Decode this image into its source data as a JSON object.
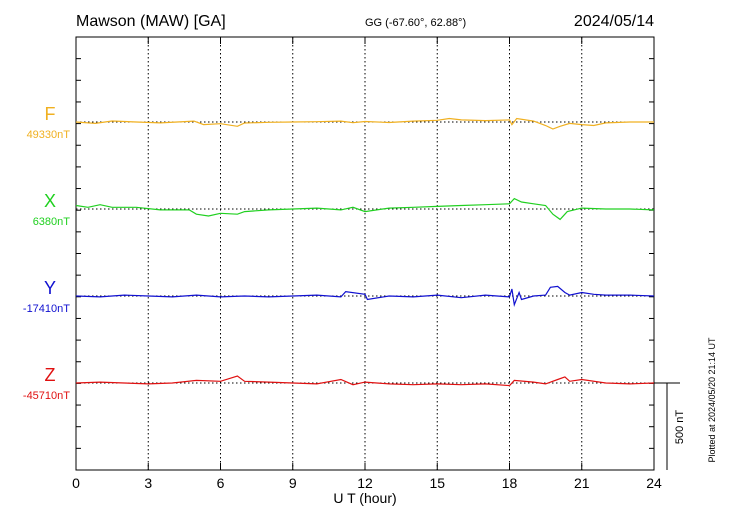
{
  "header": {
    "station": "Mawson (MAW)  [GA]",
    "coords": "GG (-67.60°,  62.88°)",
    "date": "2024/05/14"
  },
  "side_note": "Plotted at 2024/05/20 21:14 UT",
  "chart_data": {
    "type": "line",
    "xlabel": "U T (hour)",
    "xlim": [
      0,
      24
    ],
    "xticks": [
      0,
      3,
      6,
      9,
      12,
      15,
      18,
      21,
      24
    ],
    "xtick_labels": [
      "0",
      "3",
      "6",
      "9",
      "12",
      "15",
      "18",
      "21",
      "24"
    ],
    "scale_bar": {
      "label": "500 nT",
      "value_nT": 500
    },
    "series": [
      {
        "name": "F",
        "baseline": "49330nT",
        "color": "#f0b020",
        "points": [
          [
            0,
            0
          ],
          [
            0.8,
            -8
          ],
          [
            1.5,
            6
          ],
          [
            2.5,
            0
          ],
          [
            3.5,
            -5
          ],
          [
            4.9,
            5
          ],
          [
            5.3,
            -15
          ],
          [
            6,
            -10
          ],
          [
            6.7,
            -25
          ],
          [
            7,
            -6
          ],
          [
            8,
            -2
          ],
          [
            9,
            0
          ],
          [
            10,
            2
          ],
          [
            11,
            5
          ],
          [
            11.5,
            -4
          ],
          [
            12,
            3
          ],
          [
            13,
            -3
          ],
          [
            14,
            5
          ],
          [
            15,
            10
          ],
          [
            15.5,
            20
          ],
          [
            16,
            12
          ],
          [
            17,
            8
          ],
          [
            18,
            12
          ],
          [
            18.1,
            -15
          ],
          [
            18.3,
            20
          ],
          [
            19,
            5
          ],
          [
            19.5,
            -20
          ],
          [
            19.8,
            -40
          ],
          [
            20.1,
            -25
          ],
          [
            20.5,
            -8
          ],
          [
            21,
            -15
          ],
          [
            21.5,
            -20
          ],
          [
            22,
            -5
          ],
          [
            23,
            0
          ],
          [
            24,
            0
          ]
        ]
      },
      {
        "name": "X",
        "baseline": "6380nT",
        "color": "#20d020",
        "points": [
          [
            0,
            20
          ],
          [
            0.5,
            10
          ],
          [
            1,
            25
          ],
          [
            1.5,
            10
          ],
          [
            2.5,
            10
          ],
          [
            3.5,
            -5
          ],
          [
            4.7,
            -5
          ],
          [
            5,
            -30
          ],
          [
            5.5,
            -40
          ],
          [
            6,
            -25
          ],
          [
            6.7,
            -30
          ],
          [
            7,
            -15
          ],
          [
            8,
            -5
          ],
          [
            9,
            0
          ],
          [
            10,
            5
          ],
          [
            11,
            -5
          ],
          [
            11.5,
            10
          ],
          [
            12,
            -15
          ],
          [
            13,
            5
          ],
          [
            14,
            10
          ],
          [
            15,
            15
          ],
          [
            16,
            20
          ],
          [
            17,
            25
          ],
          [
            18,
            30
          ],
          [
            18.2,
            60
          ],
          [
            18.5,
            40
          ],
          [
            19,
            30
          ],
          [
            19.5,
            20
          ],
          [
            19.8,
            -30
          ],
          [
            20.1,
            -60
          ],
          [
            20.4,
            -15
          ],
          [
            21,
            5
          ],
          [
            22,
            0
          ],
          [
            23,
            0
          ],
          [
            24,
            -5
          ]
        ]
      },
      {
        "name": "Y",
        "baseline": "-17410nT",
        "color": "#1010d0",
        "points": [
          [
            0,
            0
          ],
          [
            1,
            -5
          ],
          [
            2,
            5
          ],
          [
            3,
            0
          ],
          [
            4,
            -5
          ],
          [
            5,
            5
          ],
          [
            6,
            -5
          ],
          [
            7,
            0
          ],
          [
            8,
            -5
          ],
          [
            9,
            0
          ],
          [
            10,
            5
          ],
          [
            11,
            -5
          ],
          [
            11.2,
            25
          ],
          [
            12,
            10
          ],
          [
            12.1,
            -20
          ],
          [
            13,
            0
          ],
          [
            14,
            -5
          ],
          [
            15,
            5
          ],
          [
            16,
            -10
          ],
          [
            17,
            5
          ],
          [
            18,
            -5
          ],
          [
            18.1,
            40
          ],
          [
            18.2,
            -50
          ],
          [
            18.4,
            20
          ],
          [
            18.5,
            -20
          ],
          [
            19,
            0
          ],
          [
            19.5,
            5
          ],
          [
            19.7,
            50
          ],
          [
            20,
            55
          ],
          [
            20.3,
            20
          ],
          [
            20.5,
            5
          ],
          [
            21,
            20
          ],
          [
            21.5,
            10
          ],
          [
            22,
            5
          ],
          [
            23,
            5
          ],
          [
            24,
            0
          ]
        ]
      },
      {
        "name": "Z",
        "baseline": "-45710nT",
        "color": "#e01010",
        "points": [
          [
            0,
            0
          ],
          [
            1,
            5
          ],
          [
            2,
            0
          ],
          [
            3,
            -5
          ],
          [
            4,
            0
          ],
          [
            5,
            15
          ],
          [
            6,
            10
          ],
          [
            6.7,
            40
          ],
          [
            7,
            10
          ],
          [
            8,
            5
          ],
          [
            9,
            0
          ],
          [
            10,
            -5
          ],
          [
            11,
            20
          ],
          [
            11.5,
            -10
          ],
          [
            12,
            5
          ],
          [
            13,
            -5
          ],
          [
            14,
            -10
          ],
          [
            15,
            -5
          ],
          [
            16,
            -10
          ],
          [
            17,
            -5
          ],
          [
            18,
            -15
          ],
          [
            18.2,
            15
          ],
          [
            19,
            5
          ],
          [
            19.5,
            -5
          ],
          [
            20,
            20
          ],
          [
            20.3,
            35
          ],
          [
            20.5,
            10
          ],
          [
            21,
            20
          ],
          [
            22,
            0
          ],
          [
            23,
            -5
          ],
          [
            24,
            0
          ]
        ]
      }
    ]
  }
}
